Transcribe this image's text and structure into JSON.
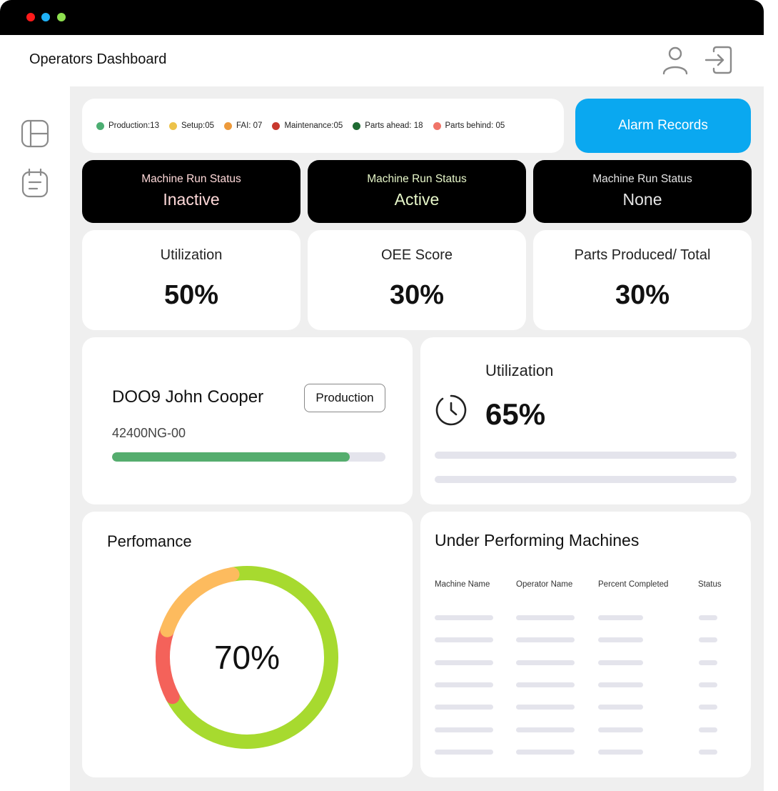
{
  "window": {
    "title_dots": [
      "#ff1a1a",
      "#1fb1f7",
      "#8ee04f"
    ]
  },
  "header": {
    "title": "Operators Dashboard",
    "icons": [
      "user-icon",
      "logout-icon"
    ]
  },
  "sidebar": {
    "icons": [
      "layout-icon",
      "calendar-list-icon"
    ]
  },
  "legend": [
    {
      "label": "Production:13",
      "color": "#4cae72"
    },
    {
      "label": "Setup:05",
      "color": "#ecc24a"
    },
    {
      "label": "FAI: 07",
      "color": "#ed9a3b"
    },
    {
      "label": "Maintenance:05",
      "color": "#c8382d"
    },
    {
      "label": "Parts ahead: 18",
      "color": "#1f6b33"
    },
    {
      "label": "Parts behind: 05",
      "color": "#f07468"
    }
  ],
  "alarm_button": {
    "label": "Alarm Records",
    "color": "#0aa8f0"
  },
  "machine_status": [
    {
      "label": "Machine Run Status",
      "value": "Inactive",
      "color": "#ffd9d9"
    },
    {
      "label": "Machine Run Status",
      "value": "Active",
      "color": "#e7f7c9"
    },
    {
      "label": "Machine Run Status",
      "value": "None",
      "color": "#e6e6e6"
    }
  ],
  "metrics": [
    {
      "label": "Utilization",
      "value": "50%"
    },
    {
      "label": "OEE Score",
      "value": "30%"
    },
    {
      "label": "Parts Produced/ Total",
      "value": "30%"
    }
  ],
  "operator": {
    "name": "DOO9 John Cooper",
    "badge": "Production",
    "code": "42400NG-00",
    "progress": 0.87,
    "progress_color": "#55ad6e"
  },
  "utilization": {
    "title": "Utilization",
    "value": "65%",
    "icon": "clock-icon"
  },
  "performance": {
    "title": "Perfomance",
    "value": "70%",
    "segments": [
      {
        "name": "good",
        "fraction": 0.7,
        "color": "#a7da2f"
      },
      {
        "name": "poor",
        "fraction": 0.13,
        "color": "#f4625a"
      },
      {
        "name": "fair",
        "fraction": 0.17,
        "color": "#fdbb5e"
      }
    ]
  },
  "under_performing": {
    "title": "Under Performing Machines",
    "columns": [
      "Machine Name",
      "Operator Name",
      "Percent Completed",
      "Status"
    ],
    "row_count": 7
  }
}
